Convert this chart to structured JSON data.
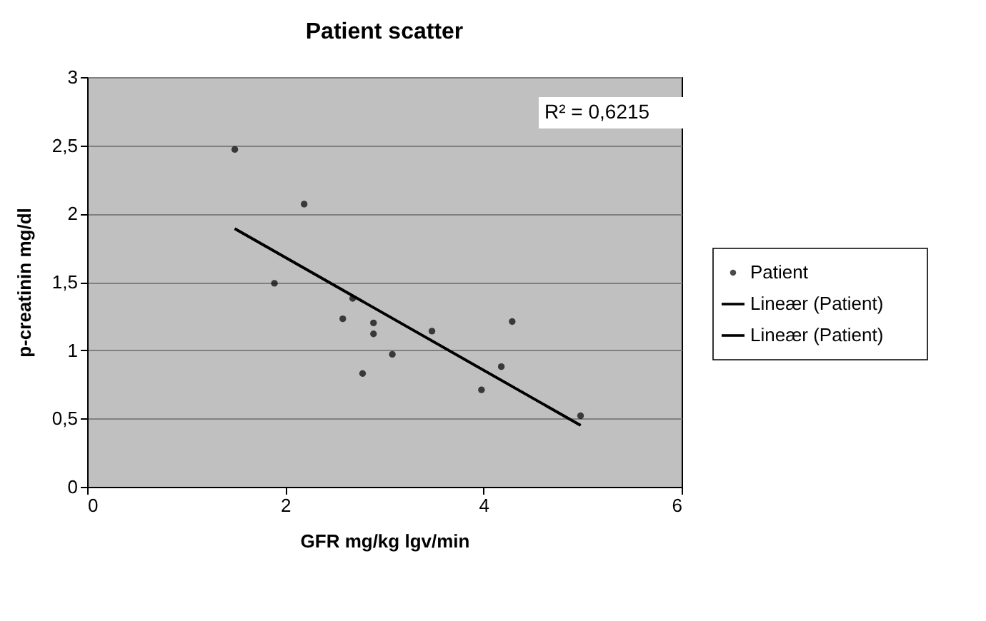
{
  "chart_data": {
    "type": "scatter",
    "title": "Patient scatter",
    "xlabel": "GFR mg/kg lgv/min",
    "ylabel": "p-creatinin mg/dl",
    "series": [
      {
        "name": "Patient",
        "color": "#000000",
        "marker": "circle",
        "x": [
          1.49,
          2.19,
          1.89,
          2.68,
          2.58,
          2.89,
          2.89,
          3.08,
          2.78,
          3.48,
          4.29,
          4.18,
          3.98,
          4.98
        ],
        "values": [
          2.47,
          2.07,
          1.49,
          1.38,
          1.23,
          1.2,
          1.12,
          0.97,
          0.83,
          1.14,
          1.21,
          0.88,
          0.71,
          0.52
        ]
      },
      {
        "name": "Lineær (Patient)",
        "type": "line",
        "color": "#000000",
        "marker": "none",
        "line_style": "solid",
        "x": [
          1.49,
          4.98
        ],
        "values": [
          1.89,
          0.45
        ]
      },
      {
        "name": "Lineær (Patient)",
        "type": "line",
        "color": "#000000",
        "marker": "none",
        "line_style": "solid",
        "x": [
          1.49,
          4.98
        ],
        "values": [
          1.89,
          0.45
        ]
      }
    ],
    "xlim": [
      0,
      6
    ],
    "xticks": [
      0,
      2,
      4,
      6
    ],
    "ylim": [
      0,
      3
    ],
    "yticks": [
      0,
      {
        "value": 0.5,
        "label": "0,5"
      },
      1,
      {
        "value": 1.5,
        "label": "1,5"
      },
      2,
      {
        "value": 2.5,
        "label": "2,5"
      },
      3
    ],
    "grid": "y",
    "legend": "right",
    "annotations": [
      "R² = 0,6215"
    ]
  }
}
